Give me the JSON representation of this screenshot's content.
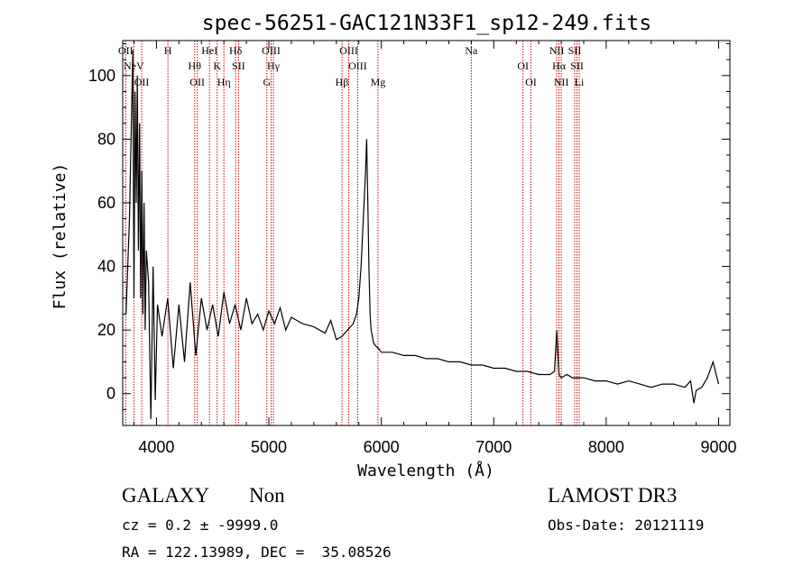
{
  "chart_data": {
    "type": "line",
    "title": "spec-56251-GAC121N33F1_sp12-249.fits",
    "xlabel": "Wavelength (Å)",
    "ylabel": "Flux (relative)",
    "xlim": [
      3700,
      9100
    ],
    "ylim": [
      -10,
      111
    ],
    "xticks": [
      4000,
      5000,
      6000,
      7000,
      8000,
      9000
    ],
    "yticks": [
      0,
      20,
      40,
      60,
      80,
      100
    ],
    "series": [
      {
        "name": "spectrum",
        "x": [
          3730,
          3760,
          3790,
          3800,
          3810,
          3820,
          3830,
          3840,
          3850,
          3860,
          3870,
          3880,
          3890,
          3900,
          3910,
          3930,
          3950,
          3970,
          3990,
          4010,
          4050,
          4100,
          4150,
          4200,
          4250,
          4300,
          4350,
          4400,
          4450,
          4500,
          4550,
          4600,
          4650,
          4700,
          4750,
          4800,
          4850,
          4900,
          4950,
          5000,
          5050,
          5100,
          5150,
          5200,
          5300,
          5400,
          5500,
          5550,
          5600,
          5650,
          5700,
          5750,
          5780,
          5800,
          5820,
          5840,
          5860,
          5870,
          5880,
          5890,
          5900,
          5910,
          5920,
          5930,
          5950,
          5980,
          6000,
          6100,
          6200,
          6300,
          6400,
          6500,
          6600,
          6700,
          6800,
          6900,
          7000,
          7100,
          7200,
          7300,
          7400,
          7500,
          7540,
          7560,
          7580,
          7600,
          7650,
          7700,
          7800,
          7900,
          8000,
          8100,
          8200,
          8300,
          8400,
          8500,
          8600,
          8700,
          8750,
          8780,
          8800,
          8850,
          8900,
          8950,
          9000
        ],
        "values": [
          25,
          55,
          108,
          30,
          95,
          60,
          100,
          45,
          85,
          30,
          70,
          25,
          60,
          20,
          45,
          35,
          -8,
          40,
          -2,
          28,
          18,
          30,
          8,
          28,
          10,
          35,
          12,
          30,
          20,
          28,
          18,
          32,
          22,
          28,
          20,
          30,
          22,
          25,
          20,
          26,
          22,
          27,
          20,
          24,
          22,
          21,
          19,
          23,
          17,
          18,
          20,
          22,
          25,
          30,
          40,
          55,
          70,
          80,
          60,
          40,
          25,
          20,
          18,
          16,
          15,
          14,
          13,
          13,
          12,
          12,
          11,
          11,
          10,
          10,
          9,
          9,
          8,
          8,
          7,
          7,
          6,
          6,
          7,
          20,
          6,
          5,
          6,
          5,
          5,
          4,
          4,
          3,
          4,
          3,
          2,
          3,
          3,
          2,
          4,
          -3,
          1,
          2,
          5,
          10,
          3
        ]
      }
    ],
    "emission_lines": [
      {
        "wl": 3727,
        "label": "OII"
      },
      {
        "wl": 3799,
        "label": "NeV"
      },
      {
        "wl": 3869,
        "label": "OII"
      },
      {
        "wl": 4102,
        "label": "H"
      },
      {
        "wl": 4340,
        "label": "Hθ"
      },
      {
        "wl": 4363,
        "label": "OII"
      },
      {
        "wl": 4472,
        "label": "HeI"
      },
      {
        "wl": 4540,
        "label": "K"
      },
      {
        "wl": 4600,
        "label": "Hη"
      },
      {
        "wl": 4704,
        "label": "Hδ"
      },
      {
        "wl": 4730,
        "label": "SII"
      },
      {
        "wl": 4982,
        "label": "G"
      },
      {
        "wl": 5020,
        "label": "OIII"
      },
      {
        "wl": 5040,
        "label": "Hγ"
      },
      {
        "wl": 5650,
        "label": "Hβ"
      },
      {
        "wl": 5710,
        "label": "OIII"
      },
      {
        "wl": 5790,
        "label": "OIII"
      },
      {
        "wl": 5970,
        "label": "Mg"
      },
      {
        "wl": 6800,
        "label": "Na"
      },
      {
        "wl": 7260,
        "label": "OI"
      },
      {
        "wl": 7330,
        "label": "OI"
      },
      {
        "wl": 7560,
        "label": "NII"
      },
      {
        "wl": 7580,
        "label": "Hα"
      },
      {
        "wl": 7600,
        "label": "NII"
      },
      {
        "wl": 7720,
        "label": "SII"
      },
      {
        "wl": 7740,
        "label": "SII"
      },
      {
        "wl": 7760,
        "label": "Li"
      }
    ]
  },
  "info": {
    "class": "GALAXY",
    "subclass": "Non",
    "cz": "cz = 0.2 ± -9999.0",
    "coords": "RA = 122.13989, DEC =  35.08526",
    "survey": "LAMOST DR3",
    "obs_date": "Obs-Date: 20121119"
  },
  "colors": {
    "spectrum": "#000000",
    "line_marker": "#cc0000"
  }
}
